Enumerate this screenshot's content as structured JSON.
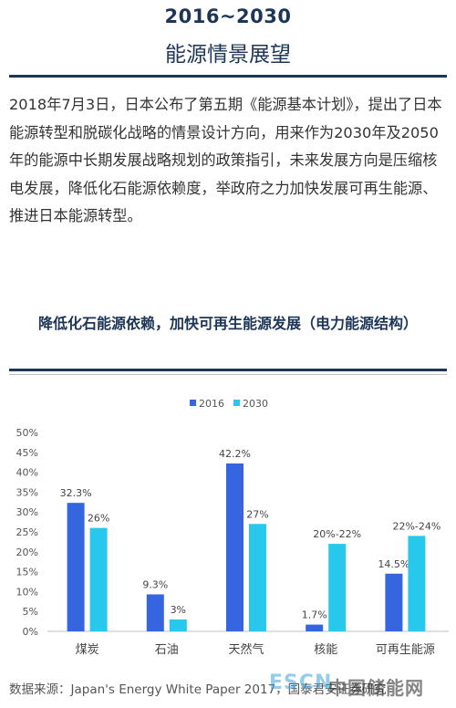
{
  "header": {
    "year_range": "2016~2030",
    "title": "能源情景展望"
  },
  "intro_paragraph": "2018年7月3日，日本公布了第五期《能源基本计划》，提出了日本能源转型和脱碳化战略的情景设计方向，用来作为2030年及2050年的能源中长期发展战略规划的政策指引，未来发展方向是压缩核电发展，降低化石能源依赖度，举政府之力加快发展可再生能源、推进日本能源转型。",
  "section_title": "降低化石能源依赖，加快可再生能源发展（电力能源结构）",
  "source_note": "数据来源：Japan's Energy White Paper 2017，国泰君安证券研究",
  "watermark": {
    "esc": "ESCN",
    "cn": "中国储能网"
  },
  "colors": {
    "series_2016": "#3566e0",
    "series_2030": "#27c8ec",
    "header": "#1d3557"
  },
  "chart_data": {
    "type": "bar",
    "categories": [
      "煤炭",
      "石油",
      "天然气",
      "核能",
      "可再生能源"
    ],
    "series": [
      {
        "name": "2016",
        "values": [
          32.3,
          9.3,
          42.2,
          1.7,
          14.5
        ],
        "labels": [
          "32.3%",
          "9.3%",
          "42.2%",
          "1.7%",
          "14.5%"
        ]
      },
      {
        "name": "2030",
        "values": [
          26,
          3,
          27,
          22,
          24
        ],
        "labels": [
          "26%",
          "3%",
          "27%",
          "20%-22%",
          "22%-24%"
        ]
      }
    ],
    "yticks": [
      "0%",
      "5%",
      "10%",
      "15%",
      "20%",
      "25%",
      "30%",
      "35%",
      "40%",
      "45%",
      "50%"
    ],
    "ylim": [
      0,
      50
    ],
    "grid": false,
    "legend": "top-center"
  }
}
